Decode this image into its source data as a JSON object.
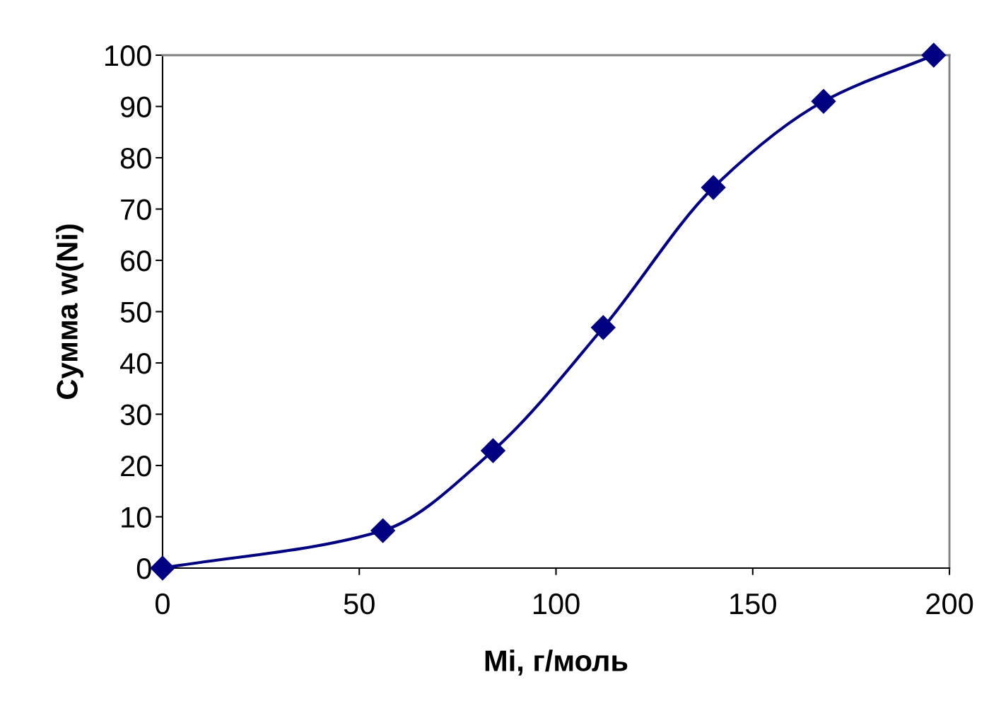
{
  "chart_data": {
    "type": "line",
    "xlabel": "Mi, г/моль",
    "ylabel": "Сумма w(Ni)",
    "x": [
      0,
      56,
      84,
      112,
      140,
      168,
      196
    ],
    "series": [
      {
        "color": "#000080",
        "values": [
          0,
          7.3,
          22.9,
          46.9,
          74.2,
          91.0,
          100
        ]
      }
    ],
    "xlim": [
      0,
      200
    ],
    "ylim": [
      0,
      100
    ],
    "xticks": [
      0,
      50,
      100,
      150,
      200
    ],
    "yticks": [
      0,
      10,
      20,
      30,
      40,
      50,
      60,
      70,
      80,
      90,
      100
    ],
    "marker": "diamond",
    "line_style": "solid",
    "grid": false,
    "legend": false
  }
}
